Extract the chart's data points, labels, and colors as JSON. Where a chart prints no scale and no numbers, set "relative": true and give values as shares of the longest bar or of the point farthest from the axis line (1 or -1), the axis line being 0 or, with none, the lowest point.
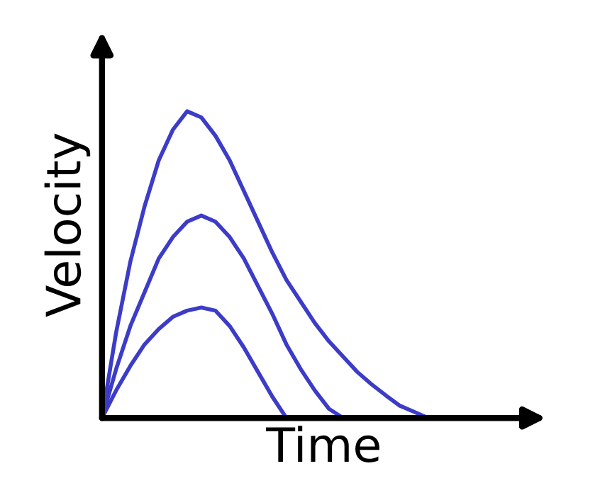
{
  "chart_data": {
    "type": "line",
    "relative": true,
    "xlabel": "Time",
    "ylabel": "Velocity",
    "categories": [
      null,
      null,
      null,
      null,
      null,
      null,
      null,
      null,
      null,
      null,
      null,
      null,
      null,
      null,
      null,
      null,
      null,
      null,
      null,
      null,
      null,
      null,
      null,
      null,
      null,
      null,
      null,
      null,
      null,
      null,
      null,
      null
    ],
    "series": [
      {
        "color": "#3c3cc8",
        "values": [
          0,
          0.28,
          0.51,
          0.69,
          0.84,
          0.94,
          1.0,
          0.98,
          0.92,
          0.84,
          0.74,
          0.64,
          0.54,
          0.45,
          0.38,
          0.31,
          0.25,
          0.2,
          0.15,
          0.11,
          0.074,
          0.04,
          0.02,
          0,
          null,
          null,
          null,
          null,
          null,
          null,
          null,
          null
        ]
      },
      {
        "color": "#3c3cc8",
        "values": [
          0,
          0.16,
          0.3,
          0.41,
          0.52,
          0.59,
          0.64,
          0.66,
          0.64,
          0.59,
          0.52,
          0.43,
          0.34,
          0.24,
          0.16,
          0.09,
          0.03,
          0,
          null,
          null,
          null,
          null,
          null,
          null,
          null,
          null,
          null,
          null,
          null,
          null,
          null,
          null
        ]
      },
      {
        "color": "#3c3cc8",
        "values": [
          0,
          0.09,
          0.17,
          0.24,
          0.29,
          0.33,
          0.35,
          0.36,
          0.35,
          0.3,
          0.23,
          0.15,
          0.07,
          0,
          null,
          null,
          null,
          null,
          null,
          null,
          null,
          null,
          null,
          null,
          null,
          null,
          null,
          null,
          null,
          null,
          null,
          null
        ]
      }
    ]
  }
}
